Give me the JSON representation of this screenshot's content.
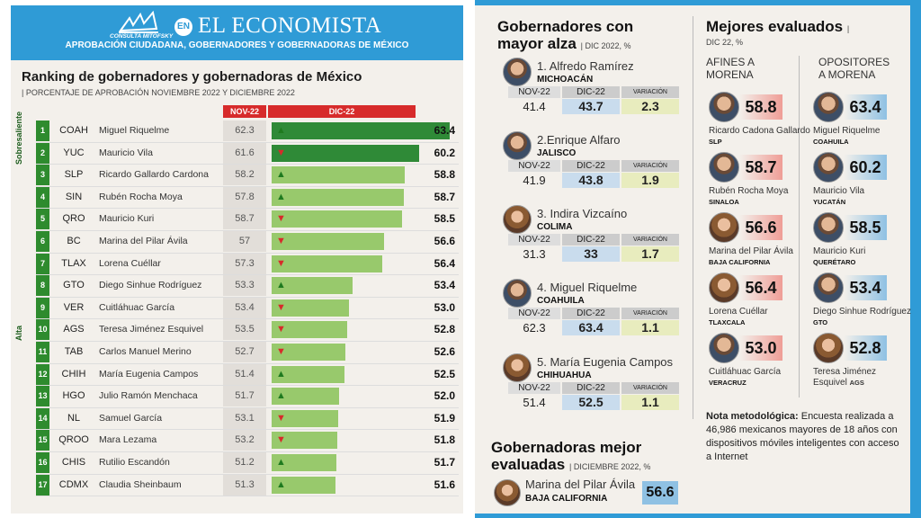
{
  "header": {
    "logo_text": "CONSULTA MITOFSKY",
    "en_badge": "EN",
    "title": "EL ECONOMISTA",
    "subtitle": "APROBACIÓN CIUDADANA, GOBERNADORES Y GOBERNADORAS DE MÉXICO"
  },
  "ranking": {
    "title": "Ranking de gobernadores y gobernadoras de México",
    "subtitle": "PORCENTAJE DE APROBACIÓN NOVIEMBRE 2022 Y DICIEMBRE 2022",
    "col_nov": "NOV-22",
    "col_dic": "DIC-22",
    "group_top": "Sobresaliente",
    "group_high": "Alta",
    "rows": [
      {
        "rank": "1",
        "abbr": "COAH",
        "name": "Miguel Riquelme",
        "nov": "62.3",
        "dic": "63.4",
        "trend": "up",
        "v": 63.4
      },
      {
        "rank": "2",
        "abbr": "YUC",
        "name": "Mauricio Vila",
        "nov": "61.6",
        "dic": "60.2",
        "trend": "down",
        "v": 60.2
      },
      {
        "rank": "3",
        "abbr": "SLP",
        "name": "Ricardo Gallardo Cardona",
        "nov": "58.2",
        "dic": "58.8",
        "trend": "up",
        "v": 58.8
      },
      {
        "rank": "4",
        "abbr": "SIN",
        "name": "Rubén Rocha Moya",
        "nov": "57.8",
        "dic": "58.7",
        "trend": "up",
        "v": 58.7
      },
      {
        "rank": "5",
        "abbr": "QRO",
        "name": "Mauricio Kuri",
        "nov": "58.7",
        "dic": "58.5",
        "trend": "down",
        "v": 58.5
      },
      {
        "rank": "6",
        "abbr": "BC",
        "name": "Marina del Pilar Ávila",
        "nov": "57",
        "dic": "56.6",
        "trend": "down",
        "v": 56.6
      },
      {
        "rank": "7",
        "abbr": "TLAX",
        "name": "Lorena Cuéllar",
        "nov": "57.3",
        "dic": "56.4",
        "trend": "down",
        "v": 56.4
      },
      {
        "rank": "8",
        "abbr": "GTO",
        "name": "Diego Sinhue Rodríguez",
        "nov": "53.3",
        "dic": "53.4",
        "trend": "up",
        "v": 53.4
      },
      {
        "rank": "9",
        "abbr": "VER",
        "name": "Cuitláhuac García",
        "nov": "53.4",
        "dic": "53.0",
        "trend": "down",
        "v": 53.0
      },
      {
        "rank": "10",
        "abbr": "AGS",
        "name": "Teresa Jiménez Esquivel",
        "nov": "53.5",
        "dic": "52.8",
        "trend": "down",
        "v": 52.8
      },
      {
        "rank": "11",
        "abbr": "TAB",
        "name": "Carlos Manuel Merino",
        "nov": "52.7",
        "dic": "52.6",
        "trend": "down",
        "v": 52.6
      },
      {
        "rank": "12",
        "abbr": "CHIH",
        "name": "María Eugenia Campos",
        "nov": "51.4",
        "dic": "52.5",
        "trend": "up",
        "v": 52.5
      },
      {
        "rank": "13",
        "abbr": "HGO",
        "name": "Julio Ramón Menchaca",
        "nov": "51.7",
        "dic": "52.0",
        "trend": "up",
        "v": 52.0
      },
      {
        "rank": "14",
        "abbr": "NL",
        "name": "Samuel García",
        "nov": "53.1",
        "dic": "51.9",
        "trend": "down",
        "v": 51.9
      },
      {
        "rank": "15",
        "abbr": "QROO",
        "name": "Mara Lezama",
        "nov": "53.2",
        "dic": "51.8",
        "trend": "down",
        "v": 51.8
      },
      {
        "rank": "16",
        "abbr": "CHIS",
        "name": "Rutilio Escandón",
        "nov": "51.2",
        "dic": "51.7",
        "trend": "up",
        "v": 51.7
      },
      {
        "rank": "17",
        "abbr": "CDMX",
        "name": "Claudia Sheinbaum",
        "nov": "51.3",
        "dic": "51.6",
        "trend": "up",
        "v": 51.6
      }
    ]
  },
  "alza": {
    "title1": "Gobernadores con",
    "title2": "mayor alza",
    "title_note": "DIC 2022, %",
    "col_nov": "NOV-22",
    "col_dic": "DIC-22",
    "col_var": "VARIACIÓN",
    "items": [
      {
        "name": "1. Alfredo Ramírez",
        "state": "MICHOACÁN",
        "nov": "41.4",
        "dic": "43.7",
        "var": "2.3"
      },
      {
        "name": "2.Enrique Alfaro",
        "state": "JALISCO",
        "nov": "41.9",
        "dic": "43.8",
        "var": "1.9"
      },
      {
        "name": "3. Indira Vizcaíno",
        "state": "COLIMA",
        "nov": "31.3",
        "dic": "33",
        "var": "1.7"
      },
      {
        "name": "4. Miguel Riquelme",
        "state": "COAHUILA",
        "nov": "62.3",
        "dic": "63.4",
        "var": "1.1"
      },
      {
        "name": "5. María Eugenia Campos",
        "state": "CHIHUAHUA",
        "nov": "51.4",
        "dic": "52.5",
        "var": "1.1"
      }
    ]
  },
  "mejores": {
    "title": "Mejores evaluados",
    "title_note": "DIC 22, %",
    "afines_l1": "AFINES A",
    "afines_l2": "MORENA",
    "opos_l1": "OPOSITORES",
    "opos_l2": "A MORENA",
    "afines": [
      {
        "score": "58.8",
        "name": "Ricardo Cadona Gallardo",
        "state": "SLP"
      },
      {
        "score": "58.7",
        "name": "Rubén Rocha Moya",
        "state": "SINALOA"
      },
      {
        "score": "56.6",
        "name": "Marina del Pilar Ávila",
        "state": "BAJA CALIFORNIA"
      },
      {
        "score": "56.4",
        "name": "Lorena Cuéllar",
        "state": "TLAXCALA"
      },
      {
        "score": "53.0",
        "name": "Cuitláhuac García",
        "state": "VERACRUZ"
      }
    ],
    "opositores": [
      {
        "score": "63.4",
        "name": "Miguel Riquelme",
        "state": "COAHUILA"
      },
      {
        "score": "60.2",
        "name": "Mauricio Vila",
        "state": "YUCATÁN"
      },
      {
        "score": "58.5",
        "name": "Mauricio Kuri",
        "state": "QUERÉTARO"
      },
      {
        "score": "53.4",
        "name": "Diego Sinhue Rodríguez",
        "state": "GTO"
      },
      {
        "score": "52.8",
        "name": "Teresa Jiménez",
        "name2": "Esquivel",
        "state": "AGS"
      }
    ]
  },
  "note": {
    "label": "Nota metodológica:",
    "text": " Encuesta realizada a 46,986 mexicanos mayores de 18 años con dispositivos móviles inteligentes con acceso a Internet"
  },
  "gobernadoras": {
    "title1": "Gobernadoras mejor",
    "title2": "evaluadas",
    "title_note": "DICIEMBRE 2022, %",
    "name": "Marina del Pilar Ávila",
    "state": "BAJA CALIFORNIA",
    "score": "56.6"
  }
}
